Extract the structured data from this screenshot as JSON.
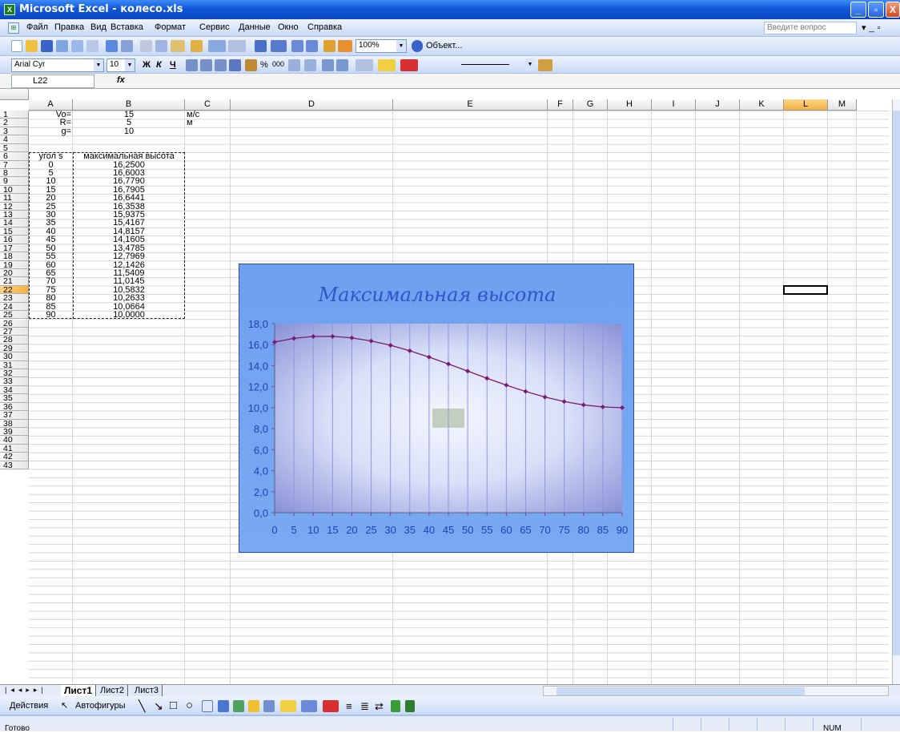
{
  "window": {
    "title": "Microsoft Excel - колесо.xls"
  },
  "menu": {
    "items": [
      "Файл",
      "Правка",
      "Вид",
      "Вставка",
      "Формат",
      "Сервис",
      "Данные",
      "Окно",
      "Справка"
    ],
    "help_placeholder": "Введите вопрос"
  },
  "toolbar": {
    "zoom": "100%",
    "object_label": "Объект...",
    "font": "Arial Cyr",
    "size": "10"
  },
  "formula_bar": {
    "name_box": "L22",
    "fx": "fx",
    "content": ""
  },
  "columns": [
    "A",
    "B",
    "C",
    "D",
    "E",
    "F",
    "G",
    "H",
    "I",
    "J",
    "K",
    "L",
    "M"
  ],
  "selected_column": "L",
  "selected_row": 22,
  "rows_visible": 43,
  "cells": {
    "params": [
      {
        "label": "Vo=",
        "value": "15",
        "unit": "м/с"
      },
      {
        "label": "R=",
        "value": "5",
        "unit": "м"
      },
      {
        "label": "g=",
        "value": "10",
        "unit": ""
      }
    ],
    "table_headers": [
      "угол s",
      "максимальная высота"
    ],
    "table_rows": [
      [
        "0",
        "16,2500"
      ],
      [
        "5",
        "16,6003"
      ],
      [
        "10",
        "16,7790"
      ],
      [
        "15",
        "16,7905"
      ],
      [
        "20",
        "16,6441"
      ],
      [
        "25",
        "16,3538"
      ],
      [
        "30",
        "15,9375"
      ],
      [
        "35",
        "15,4167"
      ],
      [
        "40",
        "14,8157"
      ],
      [
        "45",
        "14,1605"
      ],
      [
        "50",
        "13,4785"
      ],
      [
        "55",
        "12,7969"
      ],
      [
        "60",
        "12,1426"
      ],
      [
        "65",
        "11,5409"
      ],
      [
        "70",
        "11,0145"
      ],
      [
        "75",
        "10,5832"
      ],
      [
        "80",
        "10,2633"
      ],
      [
        "85",
        "10,0664"
      ],
      [
        "90",
        "10,0000"
      ]
    ]
  },
  "chart_data": {
    "type": "line",
    "title": "Максимальная высота",
    "x": [
      0,
      5,
      10,
      15,
      20,
      25,
      30,
      35,
      40,
      45,
      50,
      55,
      60,
      65,
      70,
      75,
      80,
      85,
      90
    ],
    "series": [
      {
        "values": [
          16.25,
          16.6003,
          16.779,
          16.7905,
          16.6441,
          16.3538,
          15.9375,
          15.4167,
          14.8157,
          14.1605,
          13.4785,
          12.7969,
          12.1426,
          11.5409,
          11.0145,
          10.5832,
          10.2633,
          10.0664,
          10.0
        ]
      }
    ],
    "ylim": [
      0,
      18
    ],
    "y_ticks": [
      "0,0",
      "2,0",
      "4,0",
      "6,0",
      "8,0",
      "10,0",
      "12,0",
      "14,0",
      "16,0",
      "18,0"
    ],
    "x_ticks": [
      "0",
      "5",
      "10",
      "15",
      "20",
      "25",
      "30",
      "35",
      "40",
      "45",
      "50",
      "55",
      "60",
      "65",
      "70",
      "75",
      "80",
      "85",
      "90"
    ],
    "grid": "vertical",
    "legend": "none",
    "colors": {
      "line": "#7a1a6e",
      "plot_area": "#c8d2f5",
      "chart_bg": "#6fa0f0",
      "axis_text": "#1f3fb0"
    }
  },
  "sheets": {
    "tabs": [
      "Лист1",
      "Лист2",
      "Лист3"
    ],
    "active": "Лист1"
  },
  "drawing_toolbar": {
    "actions": "Действия",
    "autoshapes": "Автофигуры"
  },
  "status": {
    "text": "Готово",
    "num": "NUM"
  }
}
